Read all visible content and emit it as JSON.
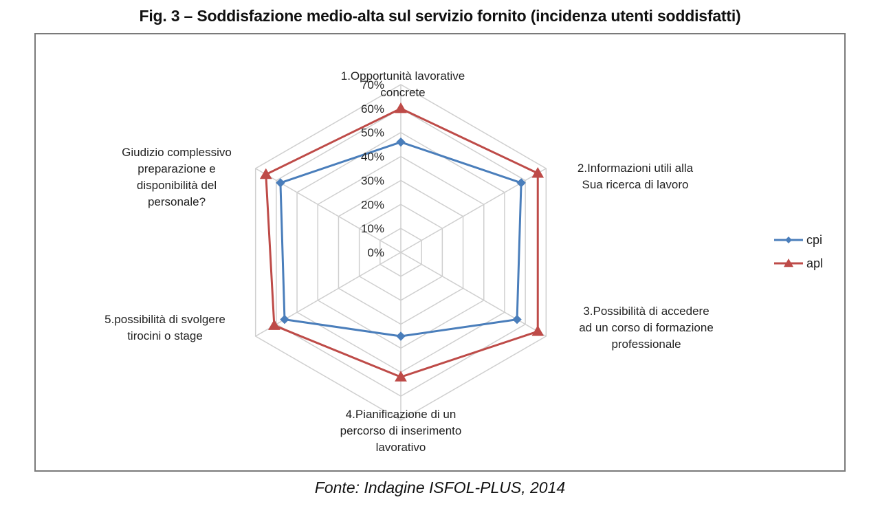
{
  "figure": {
    "title": "Fig. 3 – Soddisfazione medio-alta sul servizio fornito (incidenza utenti soddisfatti)",
    "source": "Fonte: Indagine ISFOL-PLUS, 2014"
  },
  "chart_data": {
    "type": "radar",
    "categories": [
      [
        "1.Opportunità lavorative",
        "concrete"
      ],
      [
        "2.Informazioni utili alla",
        "Sua ricerca di lavoro"
      ],
      [
        "3.Possibilità di accedere",
        "ad un corso di formazione",
        "professionale"
      ],
      [
        "4.Pianificazione di un",
        "percorso di inserimento",
        "lavorativo"
      ],
      [
        "5.possibilità di svolgere",
        "tirocini o stage"
      ],
      [
        "Giudizio complessivo",
        "preparazione e",
        "disponibilità del",
        "personale?"
      ]
    ],
    "ticks": [
      "0%",
      "10%",
      "20%",
      "30%",
      "40%",
      "50%",
      "60%",
      "70%"
    ],
    "rmax": 70,
    "series": [
      {
        "name": "cpi",
        "values": [
          46,
          58,
          56,
          35,
          56,
          58
        ],
        "color": "#4a7ebb",
        "marker": "diamond"
      },
      {
        "name": "apl",
        "values": [
          60,
          66,
          66,
          52,
          61,
          65
        ],
        "color": "#be4b48",
        "marker": "triangle"
      }
    ],
    "legend_position": "right",
    "grid": true
  }
}
